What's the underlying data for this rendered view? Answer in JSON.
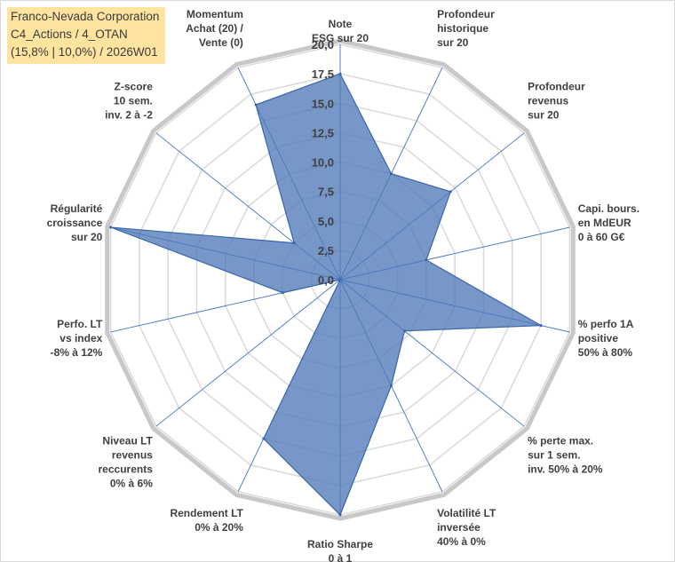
{
  "header": {
    "title_lines": [
      "Franco-Nevada Corporation",
      "C4_Actions / 4_OTAN",
      "(15,8% | 10,0%) / 2026W01"
    ]
  },
  "chart_data": {
    "type": "radar",
    "title": "Franco-Nevada Corporation C4_Actions / 4_OTAN (15,8% | 10,0%) / 2026W01",
    "rlim": [
      0,
      20
    ],
    "tick_values": [
      0,
      2.5,
      5,
      7.5,
      10,
      12.5,
      15,
      17.5,
      20
    ],
    "tick_labels": [
      "0,0",
      "2,5",
      "5,0",
      "7,5",
      "10,0",
      "12,5",
      "15,0",
      "17,5",
      "20,0"
    ],
    "grid": true,
    "legend": "none",
    "colors": {
      "fill": "#4f7ab8",
      "fill_opacity": 0.78,
      "line": "#3a66a8",
      "grid": "#d9d9d9",
      "spoke": "#4472c4"
    },
    "axes": [
      {
        "label": [
          "Note",
          "ESG sur 20"
        ],
        "value": 17.5
      },
      {
        "label": [
          "Profondeur",
          "historique",
          "sur 20"
        ],
        "value": 10.0
      },
      {
        "label": [
          "Profondeur",
          "revenus",
          "sur 20"
        ],
        "value": 12.0
      },
      {
        "label": [
          "Capi. bours.",
          "en MdEUR",
          "0 à 60 G€"
        ],
        "value": 7.5
      },
      {
        "label": [
          "% perfo 1A",
          "positive",
          "50% à 80%"
        ],
        "value": 17.5
      },
      {
        "label": [
          "% perte max.",
          "sur 1 sem.",
          "inv. 50% à 20%"
        ],
        "value": 7.0
      },
      {
        "label": [
          "Volatilité LT",
          "inversée",
          "40% à 0%"
        ],
        "value": 10.0
      },
      {
        "label": [
          "Ratio Sharpe",
          "0 à 1"
        ],
        "value": 20.0
      },
      {
        "label": [
          "Rendement LT",
          "0% à 20%"
        ],
        "value": 15.0
      },
      {
        "label": [
          "Niveau LT",
          "revenus",
          "reccurents",
          "0% à 6%"
        ],
        "value": 0.0
      },
      {
        "label": [
          "Perfo. LT",
          "vs index",
          "-8% à 12%"
        ],
        "value": 5.0
      },
      {
        "label": [
          "Régularité",
          "croissance",
          "sur 20"
        ],
        "value": 20.0
      },
      {
        "label": [
          "Z-score",
          "10 sem.",
          "inv. 2 à -2"
        ],
        "value": 5.0
      },
      {
        "label": [
          "Momentum",
          "Achat (20) /",
          "Vente (0)"
        ],
        "value": 16.5
      }
    ]
  }
}
